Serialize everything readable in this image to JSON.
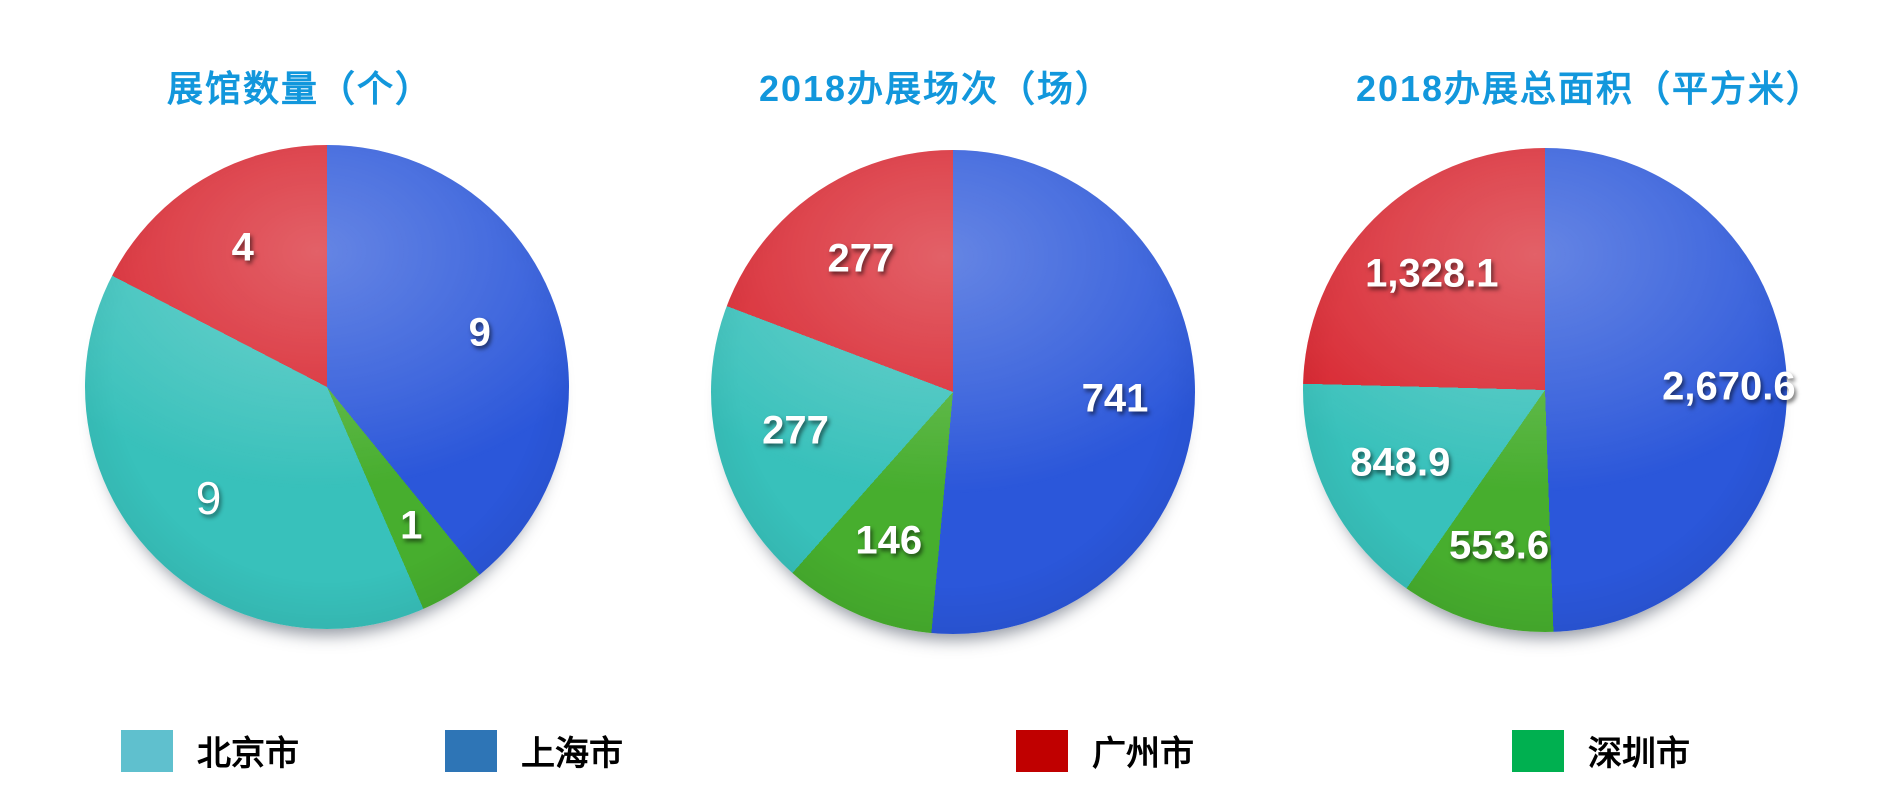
{
  "title_color": "#1297dc",
  "city_colors": {
    "北京市": "#38c1bb",
    "上海市": "#2b57da",
    "广州市": "#d8242e",
    "深圳市": "#47ae2e"
  },
  "legend": {
    "position": "bottom",
    "items": [
      {
        "label": "北京市",
        "color": "#5fc0ce"
      },
      {
        "label": "上海市",
        "color": "#2e75b6"
      },
      {
        "label": "广州市",
        "color": "#c00000"
      },
      {
        "label": "深圳市",
        "color": "#00b050"
      }
    ]
  },
  "chart_data": [
    {
      "type": "pie",
      "title": "展馆数量（个）",
      "start_angle_deg": 0,
      "direction": "clockwise",
      "series": [
        {
          "name": "上海市",
          "value": 9,
          "label": "9"
        },
        {
          "name": "深圳市",
          "value": 1,
          "label": "1"
        },
        {
          "name": "北京市",
          "value": 9,
          "label": "9",
          "light": true
        },
        {
          "name": "广州市",
          "value": 4,
          "label": "4"
        }
      ]
    },
    {
      "type": "pie",
      "title": "2018办展场次（场）",
      "start_angle_deg": 0,
      "direction": "clockwise",
      "series": [
        {
          "name": "上海市",
          "value": 741,
          "label": "741"
        },
        {
          "name": "深圳市",
          "value": 146,
          "label": "146"
        },
        {
          "name": "北京市",
          "value": 277,
          "label": "277"
        },
        {
          "name": "广州市",
          "value": 277,
          "label": "277"
        }
      ]
    },
    {
      "type": "pie",
      "title": "2018办展总面积（平方米）",
      "start_angle_deg": 0,
      "direction": "clockwise",
      "series": [
        {
          "name": "上海市",
          "value": 2670.6,
          "label": "2,670.6",
          "label_r": 0.76
        },
        {
          "name": "深圳市",
          "value": 553.6,
          "label": "553.6"
        },
        {
          "name": "北京市",
          "value": 848.9,
          "label": "848.9"
        },
        {
          "name": "广州市",
          "value": 1328.1,
          "label": "1,328.1"
        }
      ]
    }
  ]
}
